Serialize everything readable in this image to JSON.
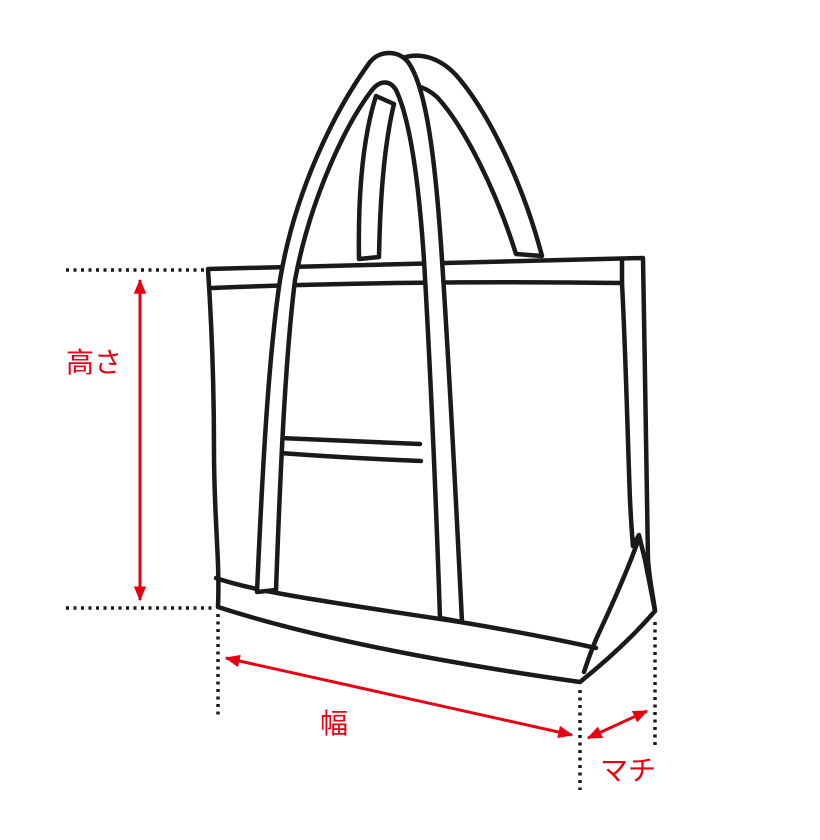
{
  "colors": {
    "line": "#1a1a1a",
    "accent": "#e60012",
    "background": "#ffffff"
  },
  "labels": {
    "height": "高さ",
    "width": "幅",
    "depth": "マチ"
  }
}
